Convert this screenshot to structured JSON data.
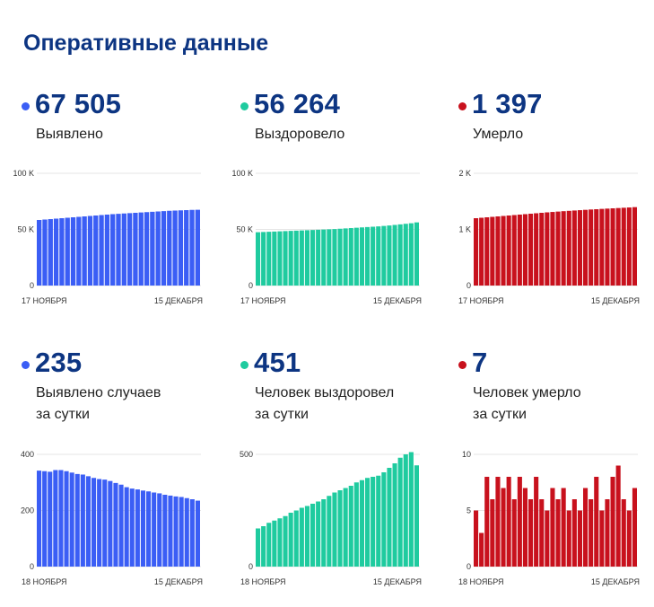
{
  "header": {
    "title": "Оперативные данные"
  },
  "colors": {
    "blue": "#3b5ef5",
    "green": "#1fcb9f",
    "red": "#c8111d",
    "value": "#0d3582"
  },
  "panels": [
    {
      "value": "67 505",
      "label": "Выявлено",
      "label2": "",
      "color": "#3b5ef5"
    },
    {
      "value": "56 264",
      "label": "Выздоровело",
      "label2": "",
      "color": "#1fcb9f"
    },
    {
      "value": "1 397",
      "label": "Умерло",
      "label2": "",
      "color": "#c8111d"
    },
    {
      "value": "235",
      "label": "Выявлено случаев",
      "label2": "за сутки",
      "color": "#3b5ef5"
    },
    {
      "value": "451",
      "label": "Человек выздоровел",
      "label2": "за сутки",
      "color": "#1fcb9f"
    },
    {
      "value": "7",
      "label": "Человек умерло",
      "label2": "за сутки",
      "color": "#c8111d"
    }
  ],
  "chart_data": [
    {
      "type": "bar",
      "title": "",
      "xlabel": "",
      "ylabel": "",
      "ylim": [
        0,
        100000
      ],
      "yticks": [
        0,
        50000,
        100000
      ],
      "ytick_labels": [
        "0",
        "50 K",
        "100 K"
      ],
      "x_start_label": "17 НОЯБРЯ",
      "x_end_label": "15 ДЕКАБРЯ",
      "values": [
        58400,
        58800,
        59200,
        59600,
        60000,
        60400,
        60800,
        61200,
        61600,
        62000,
        62400,
        62800,
        63200,
        63600,
        63900,
        64200,
        64500,
        64800,
        65100,
        65400,
        65700,
        66000,
        66300,
        66600,
        66800,
        67000,
        67200,
        67400,
        67505
      ]
    },
    {
      "type": "bar",
      "title": "",
      "xlabel": "",
      "ylabel": "",
      "ylim": [
        0,
        100000
      ],
      "yticks": [
        0,
        50000,
        100000
      ],
      "ytick_labels": [
        "0",
        "50 K",
        "100 K"
      ],
      "x_start_label": "17 НОЯБРЯ",
      "x_end_label": "15 ДЕКАБРЯ",
      "values": [
        47500,
        47700,
        47900,
        48100,
        48300,
        48500,
        48700,
        48900,
        49100,
        49300,
        49500,
        49700,
        49900,
        50100,
        50300,
        50600,
        50900,
        51200,
        51500,
        51800,
        52100,
        52400,
        52700,
        53100,
        53500,
        54000,
        54500,
        55000,
        55500,
        56264
      ]
    },
    {
      "type": "bar",
      "title": "",
      "xlabel": "",
      "ylabel": "",
      "ylim": [
        0,
        2000
      ],
      "yticks": [
        0,
        1000,
        2000
      ],
      "ytick_labels": [
        "0",
        "1 K",
        "2 K"
      ],
      "x_start_label": "17 НОЯБРЯ",
      "x_end_label": "15 ДЕКАБРЯ",
      "values": [
        1200,
        1208,
        1216,
        1224,
        1232,
        1240,
        1248,
        1256,
        1264,
        1272,
        1280,
        1288,
        1296,
        1304,
        1311,
        1318,
        1325,
        1331,
        1337,
        1343,
        1349,
        1355,
        1360,
        1366,
        1371,
        1376,
        1381,
        1386,
        1391,
        1397
      ]
    },
    {
      "type": "bar",
      "title": "",
      "xlabel": "",
      "ylabel": "",
      "ylim": [
        0,
        400
      ],
      "yticks": [
        0,
        200,
        400
      ],
      "ytick_labels": [
        "0",
        "200",
        "400"
      ],
      "x_start_label": "18 НОЯБРЯ",
      "x_end_label": "15 ДЕКАБРЯ",
      "values": [
        342,
        340,
        338,
        344,
        344,
        340,
        335,
        330,
        328,
        322,
        316,
        312,
        310,
        305,
        298,
        292,
        283,
        278,
        275,
        271,
        268,
        264,
        261,
        256,
        253,
        250,
        248,
        244,
        240,
        235
      ]
    },
    {
      "type": "bar",
      "title": "",
      "xlabel": "",
      "ylabel": "",
      "ylim": [
        0,
        500
      ],
      "yticks": [
        0,
        500
      ],
      "ytick_labels": [
        "0",
        "500"
      ],
      "x_start_label": "18 НОЯБРЯ",
      "x_end_label": "15 ДЕКАБРЯ",
      "values": [
        170,
        180,
        195,
        205,
        215,
        225,
        240,
        250,
        262,
        270,
        280,
        290,
        300,
        315,
        330,
        340,
        350,
        360,
        375,
        385,
        395,
        400,
        405,
        420,
        440,
        460,
        485,
        500,
        510,
        451
      ]
    },
    {
      "type": "bar",
      "title": "",
      "xlabel": "",
      "ylabel": "",
      "ylim": [
        0,
        10
      ],
      "yticks": [
        0,
        5,
        10
      ],
      "ytick_labels": [
        "0",
        "5",
        "10"
      ],
      "x_start_label": "18 НОЯБРЯ",
      "x_end_label": "15 ДЕКАБРЯ",
      "values": [
        5,
        3,
        8,
        6,
        8,
        7,
        8,
        6,
        8,
        7,
        6,
        8,
        6,
        5,
        7,
        6,
        7,
        5,
        6,
        5,
        7,
        6,
        8,
        5,
        6,
        8,
        9,
        6,
        5,
        7
      ]
    }
  ]
}
